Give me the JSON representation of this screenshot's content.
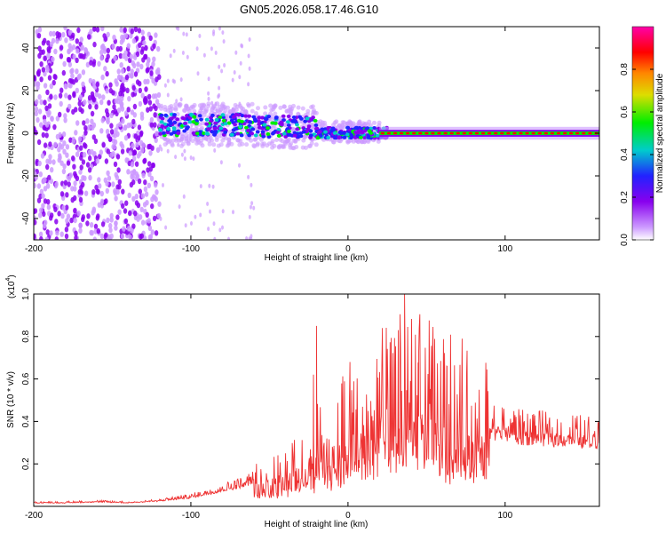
{
  "title": "GN05.2026.058.17.46.G10",
  "chart_data": [
    {
      "type": "heatmap",
      "name": "spectrogram",
      "xlabel": "Height of straight line (km)",
      "ylabel": "Frequency (Hz)",
      "xlim": [
        -200,
        160
      ],
      "ylim": [
        -50,
        50
      ],
      "xticks": [
        -200,
        -100,
        0,
        100
      ],
      "yticks": [
        -40,
        -20,
        0,
        20,
        40
      ],
      "colorbar": {
        "label": "Normalized spectral amplitude",
        "range": [
          0,
          1
        ],
        "ticks": [
          0.0,
          0.2,
          0.4,
          0.6,
          0.8
        ],
        "tick_labels": [
          "0.0",
          "0.2",
          "0.4",
          "0.6",
          "0.8"
        ],
        "colors": [
          "#ffffff",
          "#cc99ff",
          "#8800ee",
          "#2222ff",
          "#00cccc",
          "#00ee00",
          "#dddd00",
          "#ff8800",
          "#ff0000",
          "#ff00aa"
        ]
      },
      "description_of_content": [
        {
          "x_range": [
            -200,
            -120
          ],
          "freq_range": [
            -50,
            50
          ],
          "amplitude": 0.15,
          "pattern": "broadband noise"
        },
        {
          "x_range": [
            -120,
            -20
          ],
          "freq_range": [
            -5,
            15
          ],
          "amplitude": 0.35,
          "pattern": "signal rising to +5 Hz near -80 km"
        },
        {
          "x_range": [
            -20,
            20
          ],
          "freq_range": [
            -4,
            4
          ],
          "amplitude": 0.45,
          "pattern": "narrow band near 0 Hz"
        },
        {
          "x_range": [
            20,
            160
          ],
          "freq_range": [
            -1,
            1
          ],
          "amplitude": 0.95,
          "pattern": "steady line at 0 Hz"
        }
      ]
    },
    {
      "type": "line",
      "name": "snr",
      "xlabel": "Height of straight line (km)",
      "ylabel": "SNR (10 * v/v)",
      "y_multiplier": "(x10",
      "y_multiplier_exp": "4",
      "y_multiplier_close": ")",
      "xlim": [
        -200,
        160
      ],
      "ylim": [
        0,
        1.0
      ],
      "xticks": [
        -200,
        -100,
        0,
        100
      ],
      "yticks": [
        0.2,
        0.4,
        0.6,
        0.8,
        1.0
      ],
      "series": [
        {
          "name": "SNR",
          "color": "#ee3333",
          "x": [
            -200,
            -180,
            -160,
            -140,
            -120,
            -110,
            -100,
            -90,
            -80,
            -70,
            -60,
            -50,
            -40,
            -30,
            -20,
            -10,
            0,
            10,
            20,
            30,
            40,
            50,
            60,
            70,
            80,
            90,
            100,
            110,
            120,
            130,
            140,
            150,
            160
          ],
          "y": [
            0.02,
            0.02,
            0.025,
            0.02,
            0.03,
            0.04,
            0.05,
            0.07,
            0.09,
            0.11,
            0.14,
            0.16,
            0.2,
            0.24,
            0.3,
            0.36,
            0.42,
            0.46,
            0.52,
            0.58,
            0.62,
            0.56,
            0.5,
            0.52,
            0.46,
            0.42,
            0.4,
            0.38,
            0.38,
            0.37,
            0.37,
            0.36,
            0.36
          ]
        }
      ],
      "peaks": [
        {
          "x": -20,
          "y": 0.85
        },
        {
          "x": 36,
          "y": 1.0
        },
        {
          "x": 32,
          "y": 0.83
        },
        {
          "x": 63,
          "y": 0.66
        },
        {
          "x": 45,
          "y": 0.72
        },
        {
          "x": -22,
          "y": 0.62
        }
      ]
    }
  ],
  "colors": {
    "axis": "#000000",
    "snr_line": "#ee3333"
  }
}
